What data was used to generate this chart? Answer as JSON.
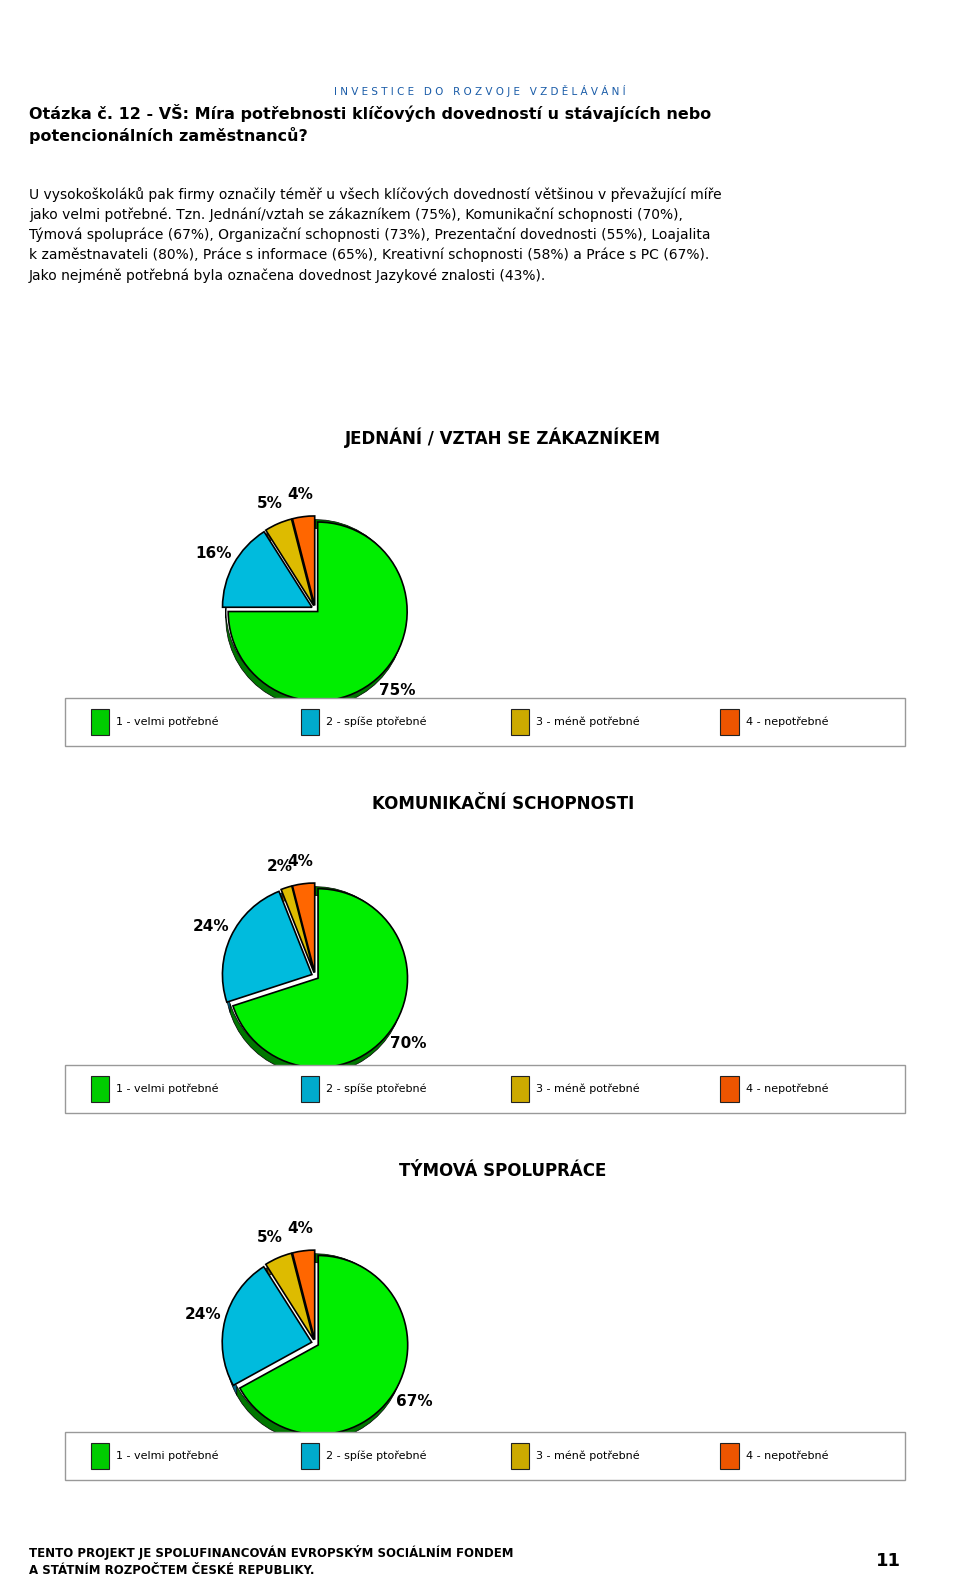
{
  "charts": [
    {
      "title": "JEDNÁNÍ / VZTAH SE ZÁKAZNÍKEM",
      "values": [
        75,
        16,
        5,
        4
      ],
      "pct_labels": [
        "75%",
        "16%",
        "5%",
        "4%"
      ],
      "colors_top": [
        "#00EE00",
        "#00BBDD",
        "#DDBB00",
        "#FF6600"
      ],
      "colors_side": [
        "#007700",
        "#006688",
        "#886600",
        "#993300"
      ],
      "startangle": 90,
      "counterclock": false
    },
    {
      "title": "KOMUNIKAČNÍ SCHOPNOSTI",
      "values": [
        70,
        24,
        2,
        4
      ],
      "pct_labels": [
        "70%",
        "24%",
        "2%",
        "4%"
      ],
      "colors_top": [
        "#00EE00",
        "#00BBDD",
        "#DDBB00",
        "#FF6600"
      ],
      "colors_side": [
        "#007700",
        "#006688",
        "#886600",
        "#993300"
      ],
      "startangle": 90,
      "counterclock": false
    },
    {
      "title": "TÝMOVÁ SPOLUPRÁCE",
      "values": [
        67,
        24,
        5,
        4
      ],
      "pct_labels": [
        "67%",
        "24%",
        "5%",
        "4%"
      ],
      "colors_top": [
        "#00EE00",
        "#00BBDD",
        "#DDBB00",
        "#FF6600"
      ],
      "colors_side": [
        "#007700",
        "#006688",
        "#886600",
        "#993300"
      ],
      "startangle": 90,
      "counterclock": false
    }
  ],
  "legend_labels": [
    "1 - velmi potřebné",
    "2 - spíše ptořebné",
    "3 - méně potřebné",
    "4 - nepotřebné"
  ],
  "legend_colors": [
    "#00CC00",
    "#00AACC",
    "#CCAA00",
    "#EE5500"
  ],
  "header_bold": "Otázka č. 12 - VŠ: Míra potřebnosti klíčových dovedností u stávajících nebo\npotencionálních zaměstnanců?",
  "body_text": "U vysokoškoláků pak firmy označily téměř u všech klíčových dovedností většinou v převažující míře\njako velmi potřebné. Tzn. Jednání/vztah se zákazníkem (75%), Komunikační schopnosti (70%),\nTýmová spolupráce (67%), Organizační schopnosti (73%), Prezentační dovednosti (55%), Loajalita\nk zaměstnavateli (80%), Práce s informace (65%), Kreativní schopnosti (58%) a Práce s PC (67%).\nJako nejméně potřebná byla označena dovednost Jazykové znalosti (43%).",
  "footer_text": "TENTO PROJEKT JE SPOLUFINANCOVÁN EVROPSKÝM SOCIÁLNÍM FONDEM\nA STÁTNÍM ROZPOČTEM ČESKÉ REPUBLIKY.",
  "page_number": "11"
}
